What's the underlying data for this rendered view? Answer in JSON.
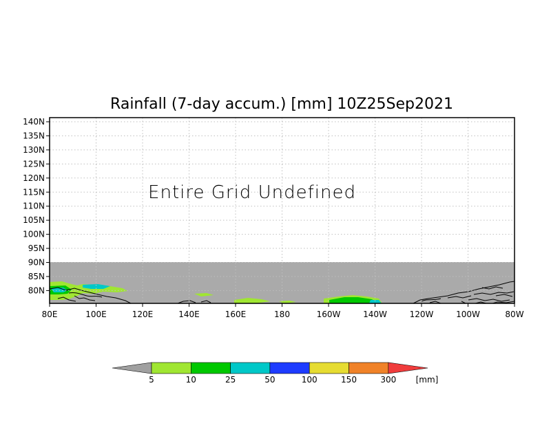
{
  "title": "Rainfall (7-day accum.) [mm] 10Z25Sep2021",
  "message": "Entire Grid Undefined",
  "lat_labels": [
    "140N",
    "135N",
    "130N",
    "125N",
    "120N",
    "115N",
    "110N",
    "105N",
    "100N",
    "95N",
    "90N",
    "85N",
    "80N"
  ],
  "lon_labels": [
    "80E",
    "100E",
    "120E",
    "140E",
    "160E",
    "180",
    "160W",
    "140W",
    "120W",
    "100W",
    "80W"
  ],
  "colorbar": {
    "unit": "[mm]",
    "labels": [
      "5",
      "10",
      "25",
      "50",
      "100",
      "150",
      "300"
    ],
    "colors": [
      "#a0e632",
      "#00c800",
      "#00c8c8",
      "#1e3cff",
      "#e6dc32",
      "#f08228",
      "#f03c3c"
    ],
    "under_color": "#a0a0a0"
  },
  "colors": {
    "missing": "#aaaaaa",
    "coast": "#000000",
    "grid": "#bfbfbf"
  }
}
